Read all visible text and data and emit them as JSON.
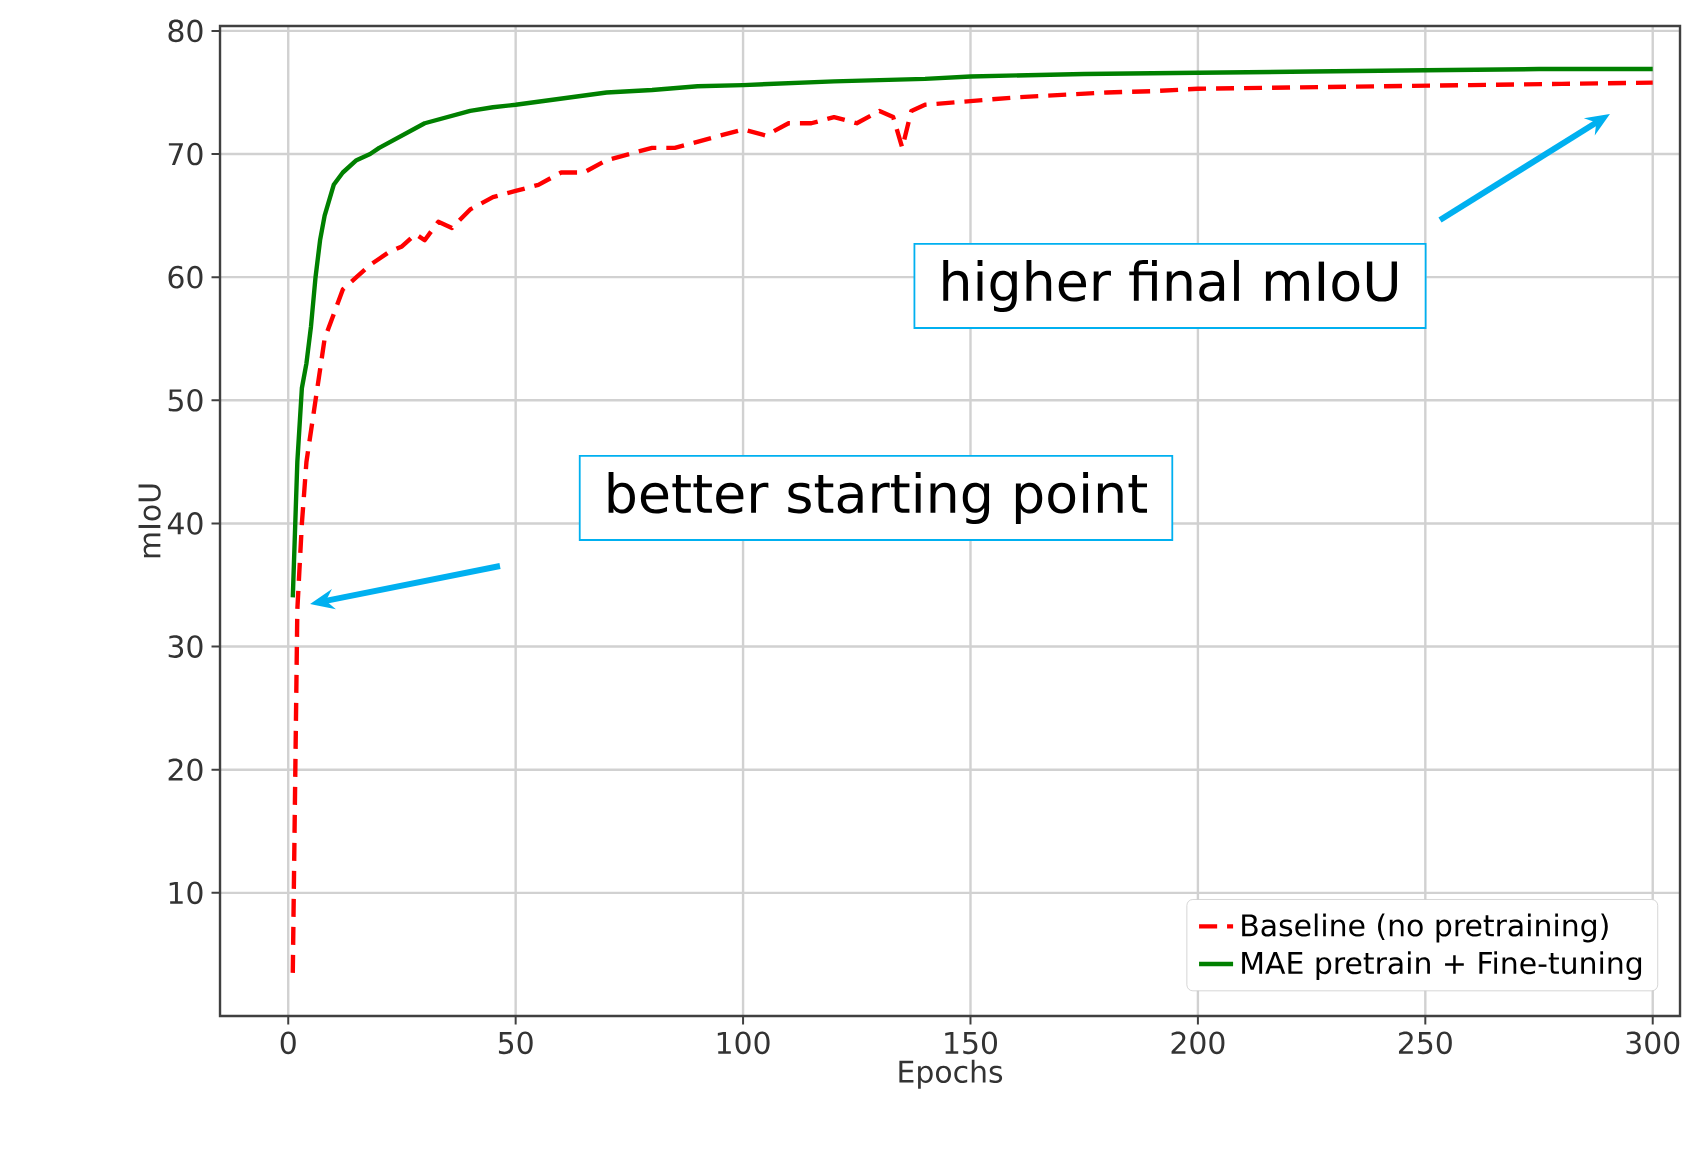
{
  "chart_data": {
    "type": "line",
    "xlabel": "Epochs",
    "ylabel": "mIoU",
    "xlim": [
      -15,
      306
    ],
    "ylim": [
      0,
      80.4
    ],
    "xticks": [
      0,
      50,
      100,
      150,
      200,
      250,
      300
    ],
    "yticks": [
      10,
      20,
      30,
      40,
      50,
      60,
      70,
      80
    ],
    "grid": true,
    "legend": "bottom right",
    "marker": "none",
    "series": [
      {
        "name": "Baseline (no pretraining)",
        "color": "#ff0000",
        "line_style": "dashed",
        "x": [
          1,
          2,
          3,
          4,
          6,
          8,
          10,
          12,
          15,
          18,
          20,
          22,
          25,
          28,
          30,
          33,
          36,
          40,
          45,
          50,
          55,
          60,
          65,
          70,
          75,
          80,
          85,
          90,
          95,
          100,
          105,
          110,
          115,
          120,
          125,
          130,
          133,
          135,
          137,
          140,
          150,
          160,
          170,
          180,
          190,
          200,
          220,
          240,
          260,
          280,
          300
        ],
        "values": [
          3.5,
          33,
          40,
          45,
          50,
          55,
          57,
          59,
          60,
          61,
          61.5,
          62,
          62.5,
          63.5,
          63,
          64.5,
          64,
          65.5,
          66.5,
          67,
          67.5,
          68.5,
          68.5,
          69.5,
          70,
          70.5,
          70.5,
          71,
          71.5,
          72,
          71.5,
          72.5,
          72.5,
          73,
          72.5,
          73.5,
          73,
          70.5,
          73.5,
          74,
          74.3,
          74.6,
          74.8,
          75,
          75.1,
          75.3,
          75.4,
          75.5,
          75.6,
          75.7,
          75.8
        ]
      },
      {
        "name": "MAE pretrain + Fine-tuning",
        "color": "#008000",
        "line_style": "solid",
        "x": [
          1,
          2,
          3,
          4,
          5,
          6,
          7,
          8,
          10,
          12,
          15,
          18,
          20,
          25,
          30,
          35,
          40,
          45,
          50,
          60,
          70,
          80,
          90,
          100,
          120,
          140,
          150,
          175,
          200,
          225,
          250,
          275,
          300
        ],
        "values": [
          34,
          45,
          51,
          53,
          56,
          60,
          63,
          65,
          67.5,
          68.5,
          69.5,
          70,
          70.5,
          71.5,
          72.5,
          73,
          73.5,
          73.8,
          74,
          74.5,
          75,
          75.2,
          75.5,
          75.6,
          75.9,
          76.1,
          76.3,
          76.5,
          76.6,
          76.7,
          76.8,
          76.9,
          76.9
        ]
      }
    ],
    "annotations": [
      "better starting point",
      "higher final mIoU"
    ]
  }
}
